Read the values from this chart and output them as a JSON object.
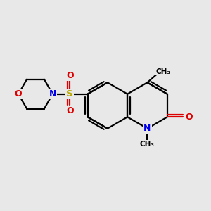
{
  "bg_color": "#e8e8e8",
  "bond_color": "#000000",
  "N_color": "#0000ee",
  "O_color": "#dd0000",
  "S_color": "#bbaa00",
  "lw": 1.6,
  "xlim": [
    0,
    10
  ],
  "ylim": [
    0,
    10
  ]
}
